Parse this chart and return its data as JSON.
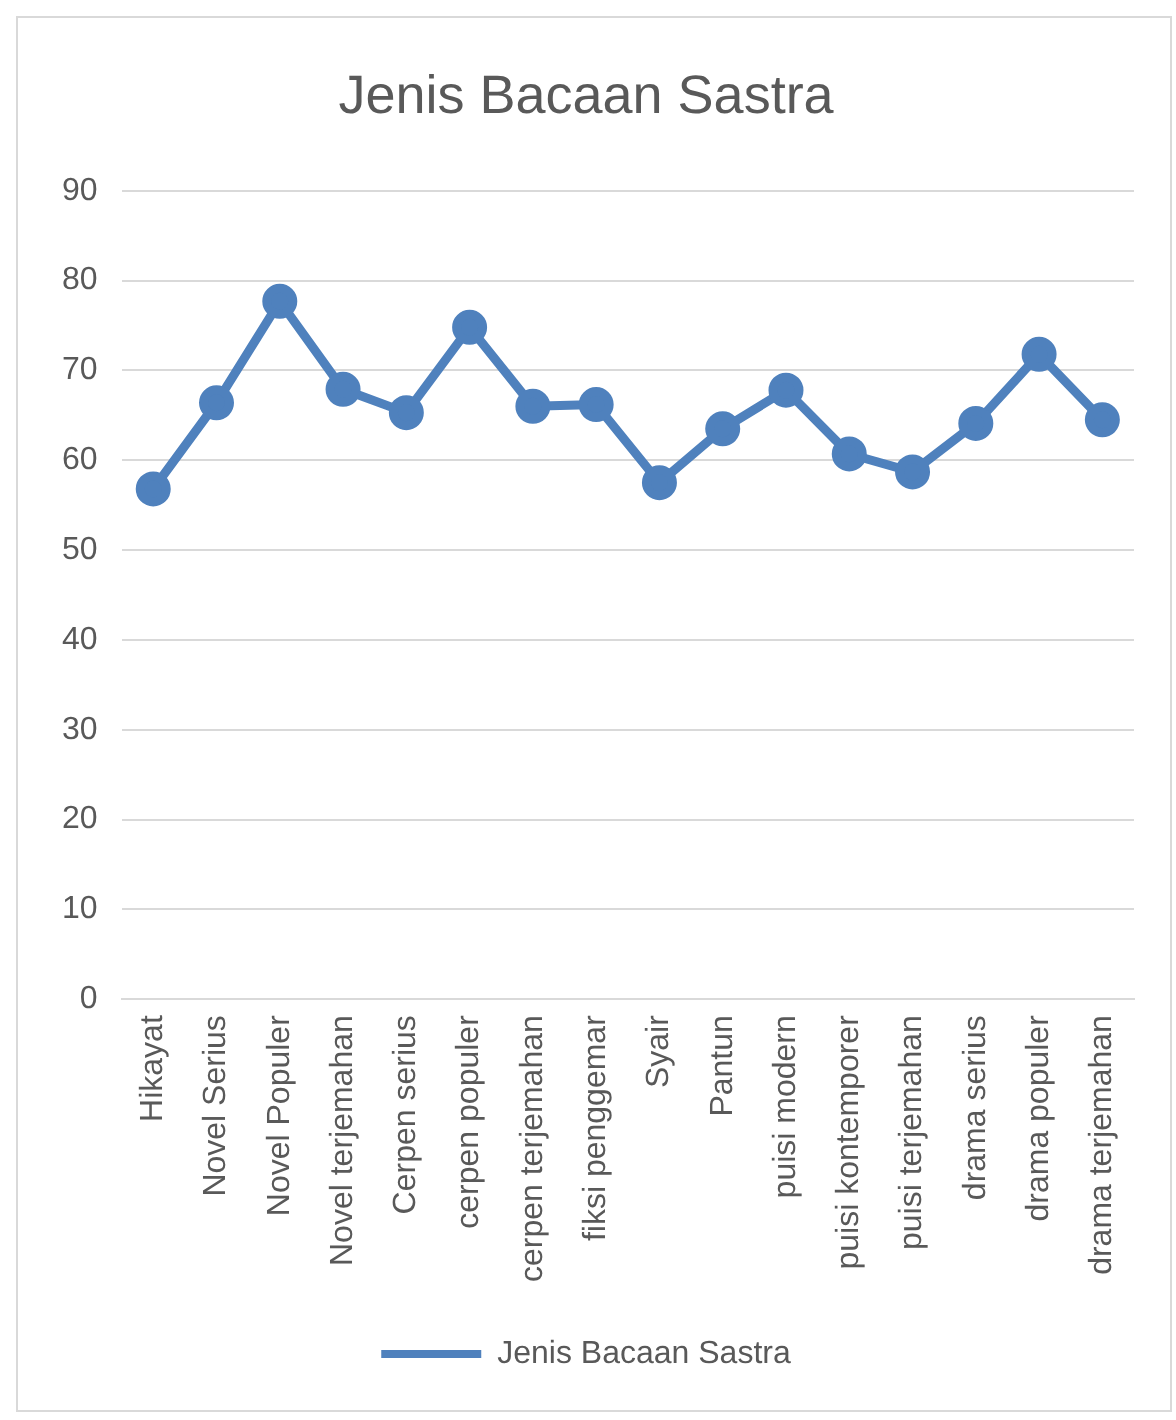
{
  "chart_data": {
    "type": "line",
    "title": "Jenis Bacaan Sastra",
    "categories": [
      "Hikayat",
      "Novel Serius",
      "Novel Populer",
      "Novel terjemahan",
      "Cerpen serius",
      "cerpen populer",
      "cerpen terjemahan",
      "fiksi penggemar",
      "Syair",
      "Pantun",
      "puisi modern",
      "puisi kontemporer",
      "puisi terjemahan",
      "drama serius",
      "drama populer",
      "drama terjemahan"
    ],
    "series": [
      {
        "name": "Jenis Bacaan Sastra",
        "color": "#4f81bd",
        "values": [
          56.8,
          66.4,
          77.7,
          67.9,
          65.3,
          74.8,
          66.0,
          66.2,
          57.5,
          63.5,
          67.8,
          60.7,
          58.7,
          64.1,
          71.8,
          64.5
        ]
      }
    ],
    "ylim": [
      0,
      90
    ],
    "yticks": [
      0,
      10,
      20,
      30,
      40,
      50,
      60,
      70,
      80,
      90
    ],
    "grid": "y",
    "legend": "bottom",
    "marker": "circle",
    "line_style": "solid"
  }
}
